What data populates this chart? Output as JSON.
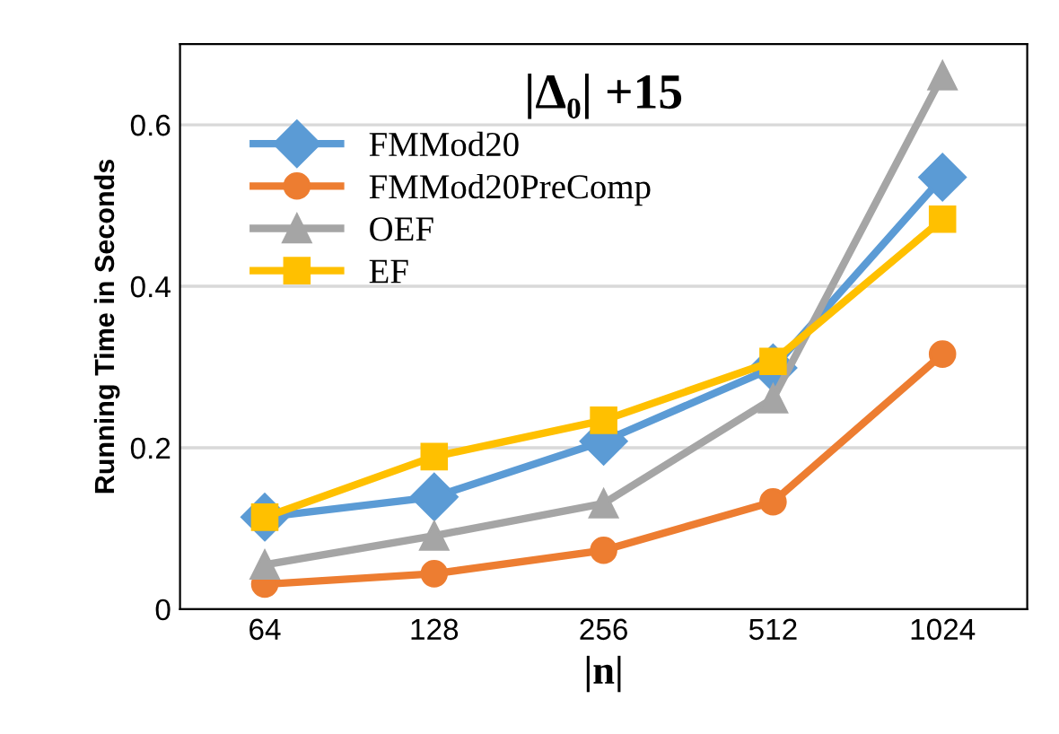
{
  "chart_data": {
    "type": "line",
    "title": "|Δ₀| +15",
    "xlabel": "|n|",
    "ylabel": "Running Time in Seconds",
    "categories": [
      "64",
      "128",
      "256",
      "512",
      "1024"
    ],
    "series": [
      {
        "name": "FMMod20",
        "color": "#5b9bd5",
        "marker": "diamond",
        "values": [
          0.114,
          0.139,
          0.208,
          0.299,
          0.535
        ]
      },
      {
        "name": "FMMod20PreComp",
        "color": "#ed7d31",
        "marker": "circle",
        "values": [
          0.031,
          0.044,
          0.073,
          0.133,
          0.316
        ]
      },
      {
        "name": "OEF",
        "color": "#a5a5a5",
        "marker": "triangle",
        "values": [
          0.055,
          0.091,
          0.131,
          0.261,
          0.661
        ]
      },
      {
        "name": "EF",
        "color": "#ffc000",
        "marker": "square",
        "values": [
          0.114,
          0.189,
          0.234,
          0.307,
          0.483
        ]
      }
    ],
    "ylim": [
      0,
      0.7
    ],
    "yticks": [
      {
        "value": 0,
        "label": "0"
      },
      0.2,
      0.4,
      0.6
    ],
    "grid": "y",
    "legend": "top left",
    "line_style": "solid"
  }
}
